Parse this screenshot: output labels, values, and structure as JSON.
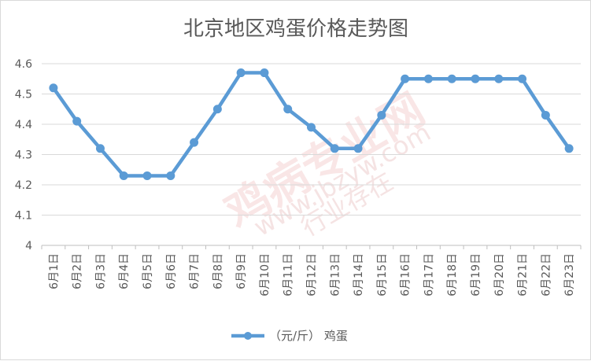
{
  "chart_data": {
    "type": "line",
    "title": "北京地区鸡蛋价格走势图",
    "categories": [
      "6月1日",
      "6月2日",
      "6月3日",
      "6月4日",
      "6月5日",
      "6月6日",
      "6月7日",
      "6月8日",
      "6月9日",
      "6月10日",
      "6月11日",
      "6月12日",
      "6月13日",
      "6月14日",
      "6月15日",
      "6月16日",
      "6月17日",
      "6月18日",
      "6月19日",
      "6月20日",
      "6月21日",
      "6月22日",
      "6月23日"
    ],
    "series": [
      {
        "name": "（元/斤） 鸡蛋",
        "color": "#5b9bd5",
        "values": [
          4.52,
          4.41,
          4.32,
          4.23,
          4.23,
          4.23,
          4.34,
          4.45,
          4.57,
          4.57,
          4.45,
          4.39,
          4.32,
          4.32,
          4.43,
          4.55,
          4.55,
          4.55,
          4.55,
          4.55,
          4.55,
          4.43,
          4.32
        ]
      }
    ],
    "yticks": [
      "4",
      "4.1",
      "4.2",
      "4.3",
      "4.4",
      "4.5",
      "4.6"
    ],
    "ylim": [
      4,
      4.6
    ],
    "grid": true,
    "legend_position": "bottom"
  },
  "watermark": {
    "main": "鸡病专业网",
    "url": "www.jbzyw.com",
    "sub": "行业存在"
  }
}
